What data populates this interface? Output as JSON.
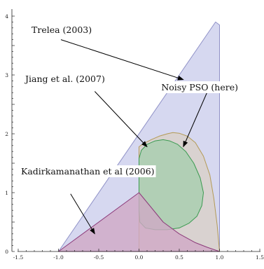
{
  "chart_data": {
    "type": "area",
    "title": "",
    "xlabel": "",
    "ylabel": "",
    "xlim": [
      -1.5,
      1.5
    ],
    "ylim": [
      0,
      4
    ],
    "x_ticks": [
      -1.5,
      -1.0,
      -0.5,
      0.0,
      0.5,
      1.0,
      1.5
    ],
    "x_tick_labels": [
      "-1.5",
      "-1.0",
      "-0.5",
      "0.0",
      "0.5",
      "1.0",
      "1.5"
    ],
    "y_ticks": [
      0,
      1,
      2,
      3,
      4
    ],
    "y_tick_labels": [
      "0",
      "1",
      "2",
      "3",
      "4"
    ],
    "grid": false,
    "colors": {
      "trelea": "#d4d6ef",
      "trelea_edge": "#8f91c7",
      "jiang": "#d9d1c8",
      "jiang_edge": "#b39a55",
      "noisy": "#a9cfb0",
      "noisy_edge": "#3a9a50",
      "kad": "#cfa9c6",
      "kad_edge": "#8c3a7a"
    },
    "series": [
      {
        "id": "trelea",
        "polygon": [
          [
            -1.0,
            0.0
          ],
          [
            0.95,
            3.9
          ],
          [
            1.0,
            3.85
          ],
          [
            1.0,
            0.0
          ]
        ]
      },
      {
        "id": "jiang",
        "polygon": [
          [
            0.0,
            0.0
          ],
          [
            0.0,
            1.78
          ],
          [
            0.05,
            1.83
          ],
          [
            0.15,
            1.9
          ],
          [
            0.25,
            1.96
          ],
          [
            0.35,
            2.0
          ],
          [
            0.42,
            2.02
          ],
          [
            0.5,
            2.01
          ],
          [
            0.6,
            1.96
          ],
          [
            0.7,
            1.85
          ],
          [
            0.8,
            1.62
          ],
          [
            0.88,
            1.3
          ],
          [
            0.93,
            0.9
          ],
          [
            0.97,
            0.45
          ],
          [
            1.0,
            0.0
          ]
        ]
      },
      {
        "id": "noisy",
        "polygon": [
          [
            0.0,
            1.58
          ],
          [
            0.03,
            1.72
          ],
          [
            0.1,
            1.82
          ],
          [
            0.2,
            1.88
          ],
          [
            0.3,
            1.9
          ],
          [
            0.38,
            1.88
          ],
          [
            0.48,
            1.82
          ],
          [
            0.58,
            1.7
          ],
          [
            0.68,
            1.5
          ],
          [
            0.76,
            1.25
          ],
          [
            0.8,
            1.0
          ],
          [
            0.78,
            0.78
          ],
          [
            0.72,
            0.6
          ],
          [
            0.62,
            0.48
          ],
          [
            0.5,
            0.4
          ],
          [
            0.35,
            0.37
          ],
          [
            0.2,
            0.37
          ],
          [
            0.08,
            0.4
          ],
          [
            0.01,
            0.5
          ],
          [
            0.0,
            0.7
          ]
        ]
      },
      {
        "id": "kad",
        "polygon": [
          [
            -1.0,
            0.0
          ],
          [
            0.0,
            1.0
          ],
          [
            0.15,
            0.75
          ],
          [
            0.3,
            0.5
          ],
          [
            0.5,
            0.3
          ],
          [
            0.7,
            0.15
          ],
          [
            0.85,
            0.07
          ],
          [
            1.0,
            0.0
          ]
        ]
      }
    ],
    "annotations": [
      {
        "text": "Trelea (2003)",
        "from": [
          -0.97,
          3.6
        ],
        "to": [
          0.55,
          2.92
        ]
      },
      {
        "text": "Jiang et al. (2007)",
        "from": [
          -0.55,
          2.72
        ],
        "to": [
          0.1,
          1.78
        ]
      },
      {
        "text": "Noisy PSO (here)",
        "from": [
          0.85,
          2.72
        ],
        "to": [
          0.55,
          1.78
        ]
      },
      {
        "text": "Kadirkamanathan et al (2006)",
        "from": [
          -0.85,
          0.98
        ],
        "to": [
          -0.55,
          0.3
        ]
      }
    ]
  }
}
